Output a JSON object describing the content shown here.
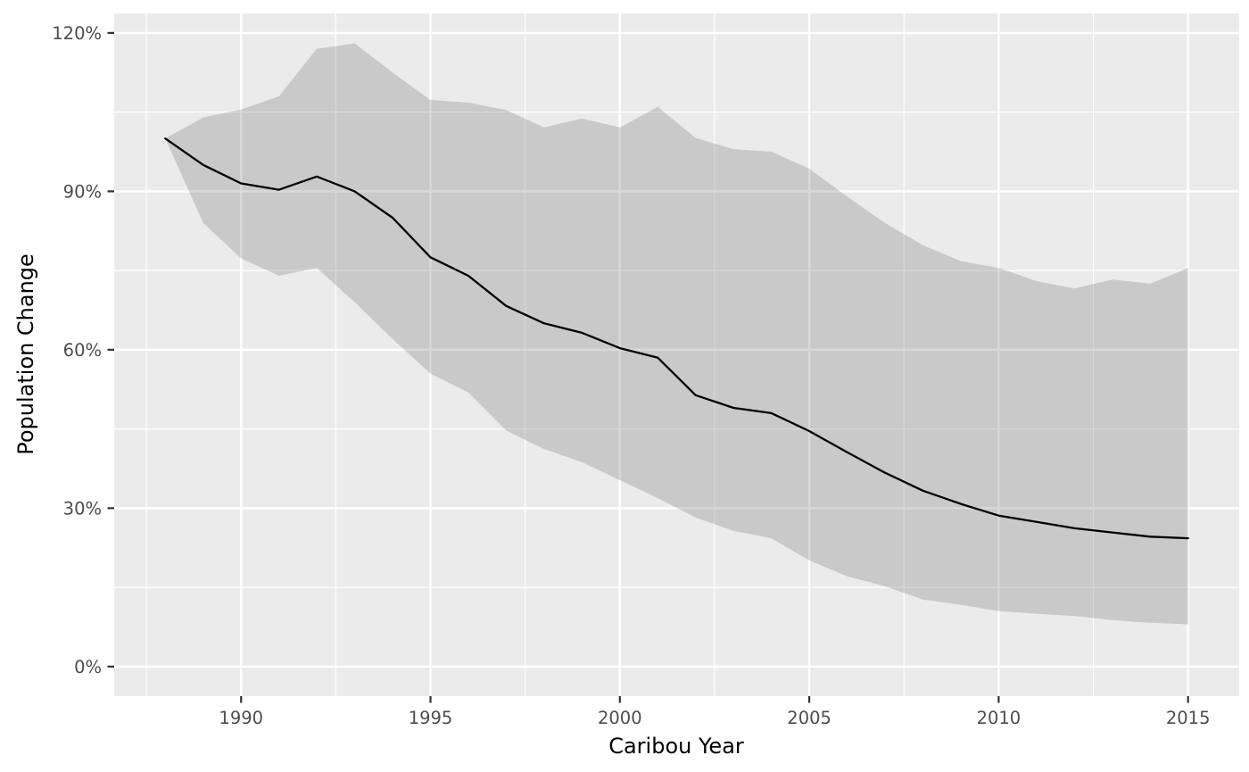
{
  "chart_data": {
    "type": "line",
    "title": "",
    "xlabel": "Caribou Year",
    "ylabel": "Population Change",
    "value_unit": "percent",
    "x": [
      1988,
      1989,
      1990,
      1991,
      1992,
      1993,
      1994,
      1995,
      1996,
      1997,
      1998,
      1999,
      2000,
      2001,
      2002,
      2003,
      2004,
      2005,
      2006,
      2007,
      2008,
      2009,
      2010,
      2011,
      2012,
      2013,
      2014,
      2015
    ],
    "series": [
      {
        "name": "mean-population-change",
        "role": "line",
        "values": [
          100,
          95,
          91.5,
          90.3,
          92.8,
          90,
          85,
          77.5,
          74,
          68.3,
          65,
          63.2,
          60.3,
          58.5,
          51.4,
          49,
          48,
          44.6,
          40.6,
          36.7,
          33.3,
          30.8,
          28.6,
          27.4,
          26.2,
          25.4,
          24.6,
          24.3
        ]
      },
      {
        "name": "upper-bound",
        "role": "ribbon-upper",
        "values": [
          100,
          104,
          105.5,
          108,
          117,
          118,
          112.5,
          107.3,
          106.8,
          105.4,
          102.1,
          103.8,
          102.1,
          106,
          100.1,
          98,
          97.5,
          94.3,
          89,
          84,
          79.8,
          76.8,
          75.5,
          73,
          71.6,
          73.3,
          72.5,
          75.5
        ]
      },
      {
        "name": "lower-bound",
        "role": "ribbon-lower",
        "values": [
          100,
          84,
          77.3,
          74,
          75.5,
          69,
          62,
          55.5,
          51.9,
          44.7,
          41.2,
          38.7,
          35.3,
          31.9,
          28.2,
          25.7,
          24.3,
          20.1,
          17.1,
          15.2,
          12.7,
          11.7,
          10.5,
          10,
          9.6,
          8.8,
          8.3,
          8
        ]
      }
    ],
    "x_domain": [
      1986.65,
      2016.35
    ],
    "y_domain": [
      -5.6,
      123.7
    ],
    "x_ticks": {
      "major": [
        1990,
        1995,
        2000,
        2005,
        2010,
        2015
      ],
      "labels": [
        "1990",
        "1995",
        "2000",
        "2005",
        "2010",
        "2015"
      ],
      "minor": [
        1987.5,
        1992.5,
        1997.5,
        2002.5,
        2007.5,
        2012.5
      ]
    },
    "y_ticks": {
      "major": [
        0,
        30,
        60,
        90,
        120
      ],
      "labels": [
        "0%",
        "30%",
        "60%",
        "90%",
        "120%"
      ],
      "minor": [
        15,
        45,
        75,
        105
      ]
    },
    "grid": true,
    "legend": "none",
    "colors": {
      "panel_background": "#EBEBEB",
      "gridline": "#FFFFFF",
      "ribbon_fill": "#636363",
      "ribbon_opacity": 0.25,
      "line": "#000000",
      "tick_mark": "#333333",
      "tick_text": "#4D4D4D",
      "axis_title_text": "#000000",
      "figure_background": "#FFFFFF"
    }
  }
}
